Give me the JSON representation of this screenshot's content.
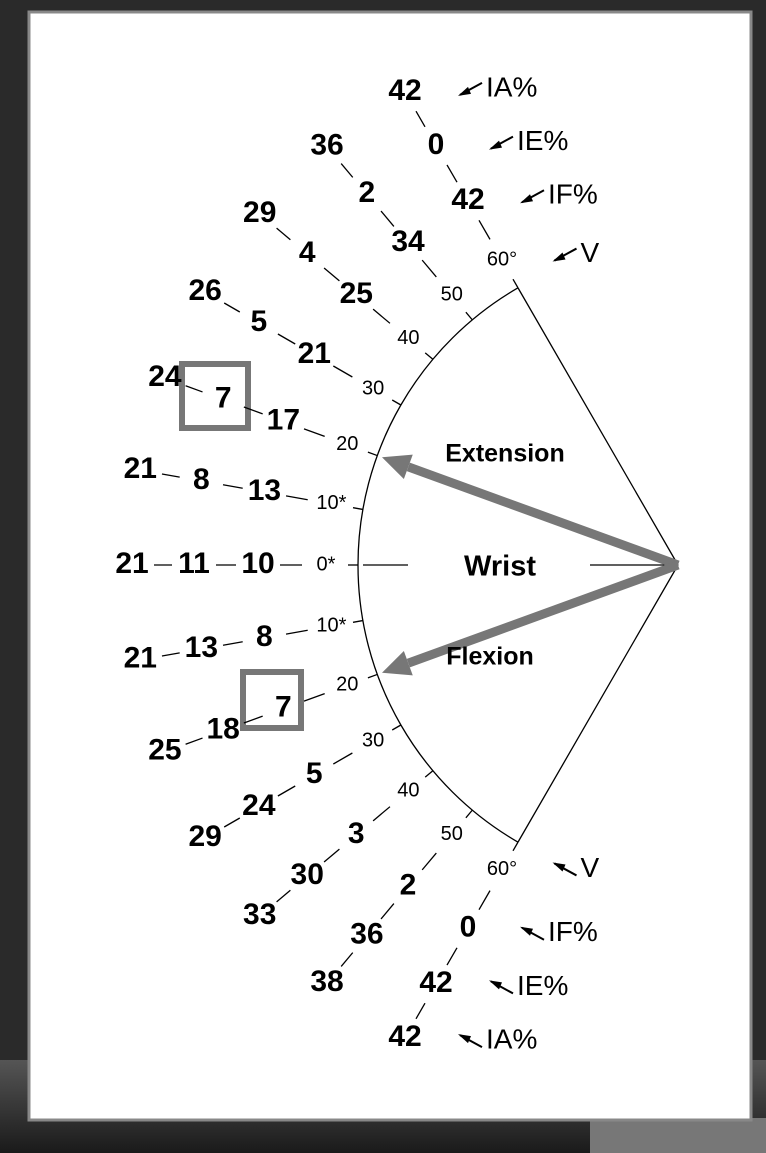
{
  "labels": {
    "extension": "Extension",
    "wrist": "Wrist",
    "flexion": "Flexion"
  },
  "legend_top": {
    "IA": "IA%",
    "IE": "IE%",
    "IF": "IF%",
    "V": "V"
  },
  "legend_bottom": {
    "V": "V",
    "IF": "IF%",
    "IE": "IE%",
    "IA": "IA%"
  },
  "rows": [
    {
      "deg": 60,
      "label": "60°",
      "IF": 42,
      "IE": 0,
      "IA": 42
    },
    {
      "deg": 50,
      "label": "50",
      "IF": 34,
      "IE": 2,
      "IA": 36
    },
    {
      "deg": 40,
      "label": "40",
      "IF": 25,
      "IE": 4,
      "IA": 29
    },
    {
      "deg": 30,
      "label": "30",
      "IF": 21,
      "IE": 5,
      "IA": 26
    },
    {
      "deg": 20,
      "label": "20",
      "IF": 17,
      "IE": 7,
      "IA": 24
    },
    {
      "deg": 10,
      "label": "10*",
      "IF": 13,
      "IE": 8,
      "IA": 21
    },
    {
      "deg": 0,
      "label": "0*",
      "IF": 10,
      "IE": 11,
      "IA": 21
    },
    {
      "deg": -10,
      "label": "10*",
      "IF": 8,
      "IE": 13,
      "IA": 21
    },
    {
      "deg": -20,
      "label": "20",
      "IF": 7,
      "IE": 18,
      "IA": 25
    },
    {
      "deg": -30,
      "label": "30",
      "IF": 5,
      "IE": 24,
      "IA": 29
    },
    {
      "deg": -40,
      "label": "40",
      "IF": 3,
      "IE": 30,
      "IA": 33
    },
    {
      "deg": -50,
      "label": "50",
      "IF": 2,
      "IE": 36,
      "IA": 38
    },
    {
      "deg": -60,
      "label": "60°",
      "IF": 0,
      "IE": 42,
      "IA": 42
    }
  ]
}
